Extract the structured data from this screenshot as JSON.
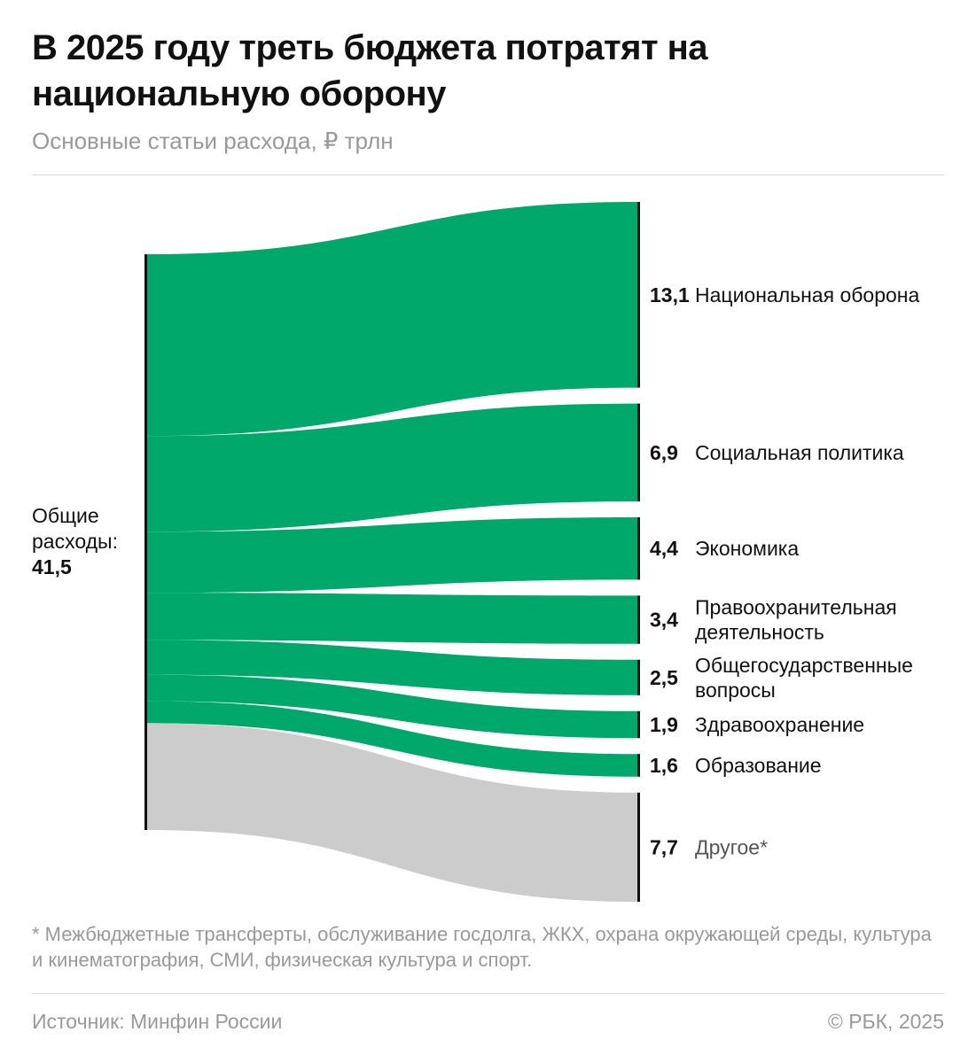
{
  "header": {
    "title": "В 2025 году треть бюджета потратят на национальную оборону",
    "subtitle": "Основные статьи расхода, ₽ трлн"
  },
  "footer": {
    "footnote": "* Межбюджетные трансферты, обслуживание госдолга, ЖКХ, охрана окружающей среды, культура и кинематография, СМИ, физическая культура и спорт.",
    "source": "Источник: Минфин России",
    "copyright": "© РБК, 2025"
  },
  "colors": {
    "green": "#00a86b",
    "gray": "#cccccc",
    "bar": "#111111"
  },
  "chart_data": {
    "type": "sankey",
    "title": "В 2025 году треть бюджета потратят на национальную оборону",
    "subtitle": "Основные статьи расхода, ₽ трлн",
    "unit": "₽ трлн",
    "source": {
      "label_lines": [
        "Общие",
        "расходы:"
      ],
      "value": 41.5,
      "value_label": "41,5"
    },
    "targets": [
      {
        "name": "Национальная оборона",
        "label_lines": [
          "Национальная оборона"
        ],
        "value": 13.1,
        "value_label": "13,1",
        "color": "green"
      },
      {
        "name": "Социальная политика",
        "label_lines": [
          "Социальная политика"
        ],
        "value": 6.9,
        "value_label": "6,9",
        "color": "green"
      },
      {
        "name": "Экономика",
        "label_lines": [
          "Экономика"
        ],
        "value": 4.4,
        "value_label": "4,4",
        "color": "green"
      },
      {
        "name": "Правоохранительная деятельность",
        "label_lines": [
          "Правоохранительная",
          "деятельность"
        ],
        "value": 3.4,
        "value_label": "3,4",
        "color": "green"
      },
      {
        "name": "Общегосударственные вопросы",
        "label_lines": [
          "Общегосударственные",
          "вопросы"
        ],
        "value": 2.5,
        "value_label": "2,5",
        "color": "green"
      },
      {
        "name": "Здравоохранение",
        "label_lines": [
          "Здравоохранение"
        ],
        "value": 1.9,
        "value_label": "1,9",
        "color": "green"
      },
      {
        "name": "Образование",
        "label_lines": [
          "Образование"
        ],
        "value": 1.6,
        "value_label": "1,6",
        "color": "green"
      },
      {
        "name": "Другое*",
        "label_lines": [
          "Другое*"
        ],
        "value": 7.7,
        "value_label": "7,7",
        "color": "gray"
      }
    ]
  }
}
